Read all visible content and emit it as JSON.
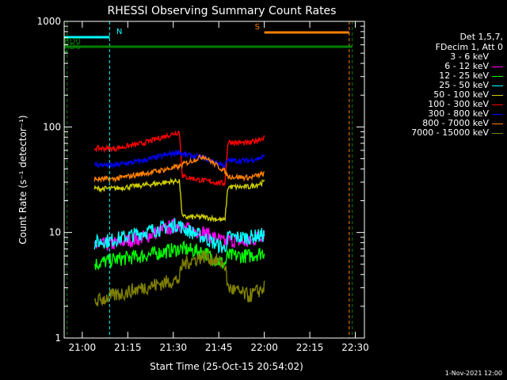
{
  "chart_data": {
    "type": "line",
    "title": "RHESSI Observing Summary Count Rates",
    "xlabel": "Start Time (25-Oct-15 20:54:02)",
    "ylabel": "Count Rate (s⁻¹ detector⁻¹)",
    "yscale": "log",
    "ylim": [
      1,
      1000
    ],
    "xlim_minutes": [
      20.9,
      22.55
    ],
    "x_ticks": [
      "21:00",
      "21:15",
      "21:30",
      "21:45",
      "22:00",
      "22:15",
      "22:30"
    ],
    "y_ticks": [
      "1",
      "10",
      "100",
      "1000"
    ],
    "grid": true,
    "legend_header": [
      "Det 1,5,7,",
      "FDecim 1, Att 0"
    ],
    "series": [
      {
        "name": "3 - 6 keV",
        "color": "#000000",
        "x": [
          "21:04",
          "21:10",
          "21:20",
          "21:32",
          "21:33",
          "21:40",
          "21:47",
          "21:48",
          "21:55",
          "22:00"
        ],
        "values": [
          35,
          33,
          34,
          37,
          35,
          32,
          28,
          34,
          34,
          36
        ]
      },
      {
        "name": "6 - 12 keV",
        "color": "#ff00ff",
        "x": [
          "21:04",
          "21:10",
          "21:20",
          "21:32",
          "21:33",
          "21:40",
          "21:47",
          "21:48",
          "21:55",
          "22:00"
        ],
        "values": [
          7.5,
          7.8,
          9,
          12,
          11,
          10,
          8,
          8.5,
          8,
          10
        ]
      },
      {
        "name": "12 - 25 keV",
        "color": "#00ff00",
        "x": [
          "21:04",
          "21:10",
          "21:20",
          "21:32",
          "21:33",
          "21:40",
          "21:47",
          "21:48",
          "21:55",
          "22:00"
        ],
        "values": [
          5,
          5.5,
          6,
          7,
          7,
          6.5,
          5,
          6,
          6,
          6.5
        ]
      },
      {
        "name": "25 - 50 keV",
        "color": "#00ffff",
        "x": [
          "21:04",
          "21:10",
          "21:20",
          "21:32",
          "21:33",
          "21:40",
          "21:47",
          "21:48",
          "21:55",
          "22:00"
        ],
        "values": [
          8,
          8.5,
          10,
          12,
          11,
          9,
          7,
          9,
          9,
          9.5
        ]
      },
      {
        "name": "50 - 100 keV",
        "color": "#cccc00",
        "x": [
          "21:04",
          "21:10",
          "21:20",
          "21:32",
          "21:33",
          "21:40",
          "21:47",
          "21:48",
          "21:55",
          "22:00"
        ],
        "values": [
          26,
          26,
          28,
          31,
          14,
          14,
          13,
          27,
          27,
          30
        ]
      },
      {
        "name": "100 - 300 keV",
        "color": "#ff0000",
        "x": [
          "21:04",
          "21:10",
          "21:20",
          "21:32",
          "21:33",
          "21:40",
          "21:47",
          "21:48",
          "21:55",
          "22:00"
        ],
        "values": [
          63,
          62,
          70,
          90,
          34,
          31,
          29,
          72,
          70,
          80
        ]
      },
      {
        "name": "300 - 800 keV",
        "color": "#0000ff",
        "x": [
          "21:04",
          "21:10",
          "21:20",
          "21:32",
          "21:33",
          "21:40",
          "21:47",
          "21:48",
          "21:55",
          "22:00"
        ],
        "values": [
          44,
          43,
          48,
          58,
          55,
          51,
          43,
          48,
          48,
          52
        ]
      },
      {
        "name": "800 - 7000 keV",
        "color": "#ff8000",
        "x": [
          "21:04",
          "21:10",
          "21:20",
          "21:32",
          "21:33",
          "21:40",
          "21:47",
          "21:48",
          "21:55",
          "22:00"
        ],
        "values": [
          32,
          32,
          36,
          42,
          44,
          53,
          38,
          34,
          33,
          36
        ]
      },
      {
        "name": "7000 - 15000 keV",
        "color": "#808000",
        "x": [
          "21:04",
          "21:10",
          "21:20",
          "21:32",
          "21:33",
          "21:40",
          "21:47",
          "21:48",
          "21:55",
          "22:00"
        ],
        "values": [
          2.2,
          2.5,
          3,
          3.6,
          5,
          6,
          5,
          3,
          2.5,
          3
        ]
      }
    ],
    "annotations": [
      {
        "label": "N",
        "color": "#00ffff",
        "x_start": "20:54",
        "x_end": "21:09"
      },
      {
        "label": "S",
        "color": "#ff8000",
        "x_start": "22:00",
        "x_end": "22:28"
      },
      {
        "label": "RD0",
        "color": "#008000",
        "x_start": "20:54",
        "x_end": "22:29"
      },
      {
        "label": "RD6",
        "color": "#008000",
        "x_start": "20:54",
        "x_end": "20:55"
      }
    ],
    "footer": "1-Nov-2021 12:00"
  }
}
